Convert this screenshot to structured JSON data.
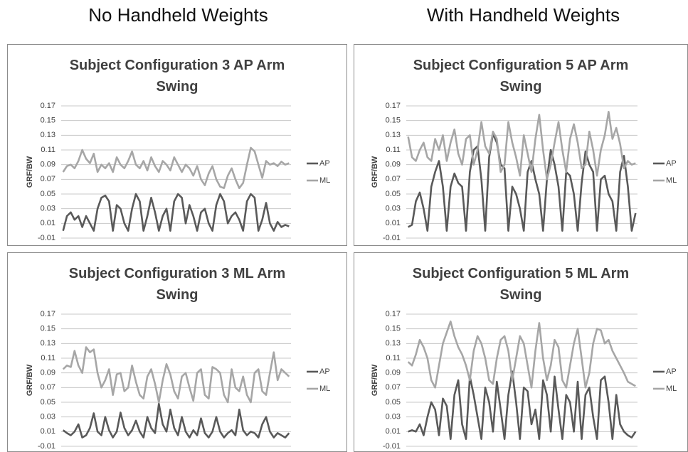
{
  "headers": [
    "No Handheld Weights",
    "With Handheld Weights"
  ],
  "chart_data": [
    {
      "type": "line",
      "title": "Subject Configuration 3 AP Arm Swing",
      "ylabel": "GRF/BW",
      "ylim": [
        -0.01,
        0.17
      ],
      "yticks": [
        -0.01,
        0.01,
        0.03,
        0.05,
        0.07,
        0.09,
        0.11,
        0.13,
        0.15,
        0.17
      ],
      "grid": true,
      "series": [
        {
          "name": "AP",
          "color": "#595959",
          "values": [
            0.0,
            0.02,
            0.025,
            0.015,
            0.02,
            0.005,
            0.02,
            0.01,
            0.0,
            0.03,
            0.045,
            0.048,
            0.04,
            0.0,
            0.035,
            0.03,
            0.01,
            0.0,
            0.03,
            0.05,
            0.04,
            0.0,
            0.02,
            0.045,
            0.025,
            0.0,
            0.02,
            0.03,
            0.0,
            0.04,
            0.05,
            0.045,
            0.01,
            0.035,
            0.02,
            0.0,
            0.025,
            0.03,
            0.01,
            0.0,
            0.035,
            0.05,
            0.04,
            0.01,
            0.02,
            0.025,
            0.015,
            0.0,
            0.04,
            0.05,
            0.045,
            0.0,
            0.015,
            0.038,
            0.01,
            0.0,
            0.012,
            0.005,
            0.008,
            0.006
          ]
        },
        {
          "name": "ML",
          "color": "#a6a6a6",
          "values": [
            0.08,
            0.088,
            0.09,
            0.085,
            0.095,
            0.11,
            0.098,
            0.092,
            0.105,
            0.08,
            0.09,
            0.085,
            0.092,
            0.08,
            0.1,
            0.09,
            0.085,
            0.095,
            0.108,
            0.09,
            0.085,
            0.095,
            0.082,
            0.1,
            0.088,
            0.08,
            0.095,
            0.09,
            0.082,
            0.1,
            0.09,
            0.08,
            0.09,
            0.085,
            0.075,
            0.088,
            0.07,
            0.062,
            0.078,
            0.088,
            0.07,
            0.06,
            0.058,
            0.075,
            0.085,
            0.07,
            0.058,
            0.065,
            0.09,
            0.113,
            0.108,
            0.09,
            0.072,
            0.095,
            0.09,
            0.092,
            0.088,
            0.094,
            0.09,
            0.092
          ]
        }
      ]
    },
    {
      "type": "line",
      "title": "Subject Configuration 5 AP Arm Swing",
      "ylabel": "GRF/BW",
      "ylim": [
        -0.01,
        0.17
      ],
      "yticks": [
        -0.01,
        0.01,
        0.03,
        0.05,
        0.07,
        0.09,
        0.11,
        0.13,
        0.15,
        0.17
      ],
      "grid": true,
      "series": [
        {
          "name": "AP",
          "color": "#595959",
          "values": [
            0.005,
            0.008,
            0.04,
            0.052,
            0.03,
            0.0,
            0.06,
            0.08,
            0.095,
            0.06,
            0.0,
            0.06,
            0.078,
            0.065,
            0.06,
            0.0,
            0.08,
            0.11,
            0.115,
            0.07,
            0.0,
            0.1,
            0.132,
            0.12,
            0.09,
            0.085,
            0.0,
            0.06,
            0.05,
            0.03,
            0.0,
            0.08,
            0.095,
            0.07,
            0.05,
            0.0,
            0.07,
            0.11,
            0.09,
            0.06,
            0.0,
            0.08,
            0.075,
            0.05,
            0.0,
            0.065,
            0.108,
            0.09,
            0.08,
            0.0,
            0.07,
            0.075,
            0.05,
            0.04,
            0.0,
            0.08,
            0.102,
            0.06,
            0.0,
            0.024
          ]
        },
        {
          "name": "ML",
          "color": "#a6a6a6",
          "values": [
            0.128,
            0.1,
            0.095,
            0.11,
            0.12,
            0.1,
            0.095,
            0.125,
            0.11,
            0.13,
            0.095,
            0.12,
            0.138,
            0.105,
            0.09,
            0.125,
            0.13,
            0.09,
            0.11,
            0.148,
            0.115,
            0.105,
            0.135,
            0.125,
            0.08,
            0.09,
            0.148,
            0.12,
            0.1,
            0.075,
            0.13,
            0.105,
            0.08,
            0.125,
            0.158,
            0.11,
            0.07,
            0.09,
            0.12,
            0.148,
            0.11,
            0.08,
            0.125,
            0.145,
            0.12,
            0.085,
            0.09,
            0.135,
            0.11,
            0.075,
            0.11,
            0.13,
            0.162,
            0.125,
            0.14,
            0.118,
            0.085,
            0.095,
            0.09,
            0.092
          ]
        }
      ]
    },
    {
      "type": "line",
      "title": "Subject Configuration 3 ML Arm Swing",
      "ylabel": "GRF/BW",
      "ylim": [
        -0.01,
        0.17
      ],
      "yticks": [
        -0.01,
        0.01,
        0.03,
        0.05,
        0.07,
        0.09,
        0.11,
        0.13,
        0.15,
        0.17
      ],
      "grid": true,
      "series": [
        {
          "name": "AP",
          "color": "#595959",
          "values": [
            0.012,
            0.008,
            0.005,
            0.01,
            0.02,
            0.002,
            0.005,
            0.015,
            0.035,
            0.01,
            0.005,
            0.03,
            0.012,
            0.002,
            0.01,
            0.036,
            0.015,
            0.005,
            0.012,
            0.025,
            0.01,
            0.002,
            0.03,
            0.015,
            0.008,
            0.048,
            0.02,
            0.01,
            0.04,
            0.015,
            0.005,
            0.03,
            0.01,
            0.002,
            0.012,
            0.005,
            0.028,
            0.008,
            0.002,
            0.01,
            0.03,
            0.01,
            0.002,
            0.008,
            0.012,
            0.005,
            0.04,
            0.012,
            0.005,
            0.01,
            0.008,
            0.002,
            0.02,
            0.03,
            0.01,
            0.002,
            0.008,
            0.005,
            0.002,
            0.008
          ]
        },
        {
          "name": "ML",
          "color": "#a6a6a6",
          "values": [
            0.095,
            0.1,
            0.098,
            0.12,
            0.1,
            0.09,
            0.125,
            0.118,
            0.122,
            0.09,
            0.07,
            0.08,
            0.095,
            0.06,
            0.088,
            0.09,
            0.065,
            0.07,
            0.1,
            0.078,
            0.06,
            0.055,
            0.085,
            0.095,
            0.075,
            0.05,
            0.08,
            0.102,
            0.088,
            0.065,
            0.055,
            0.085,
            0.09,
            0.07,
            0.052,
            0.09,
            0.095,
            0.06,
            0.055,
            0.098,
            0.095,
            0.09,
            0.06,
            0.05,
            0.095,
            0.07,
            0.065,
            0.085,
            0.06,
            0.05,
            0.09,
            0.095,
            0.065,
            0.06,
            0.09,
            0.118,
            0.08,
            0.095,
            0.09,
            0.085
          ]
        }
      ]
    },
    {
      "type": "line",
      "title": "Subject Configuration 5 ML Arm Swing",
      "ylabel": "GRF/BW",
      "ylim": [
        -0.01,
        0.17
      ],
      "yticks": [
        -0.01,
        0.01,
        0.03,
        0.05,
        0.07,
        0.09,
        0.11,
        0.13,
        0.15,
        0.17
      ],
      "grid": true,
      "series": [
        {
          "name": "AP",
          "color": "#595959",
          "values": [
            0.01,
            0.012,
            0.01,
            0.02,
            0.005,
            0.03,
            0.05,
            0.04,
            0.005,
            0.055,
            0.045,
            0.0,
            0.06,
            0.08,
            0.02,
            0.0,
            0.085,
            0.06,
            0.03,
            0.0,
            0.07,
            0.05,
            0.01,
            0.078,
            0.04,
            0.0,
            0.06,
            0.092,
            0.05,
            0.0,
            0.07,
            0.065,
            0.02,
            0.04,
            0.0,
            0.08,
            0.06,
            0.01,
            0.085,
            0.04,
            0.0,
            0.06,
            0.05,
            0.01,
            0.078,
            0.0,
            0.06,
            0.07,
            0.03,
            0.0,
            0.08,
            0.085,
            0.05,
            0.0,
            0.06,
            0.02,
            0.01,
            0.005,
            0.002,
            0.01
          ]
        },
        {
          "name": "ML",
          "color": "#a6a6a6",
          "values": [
            0.105,
            0.1,
            0.115,
            0.135,
            0.125,
            0.11,
            0.08,
            0.07,
            0.1,
            0.13,
            0.145,
            0.16,
            0.14,
            0.125,
            0.115,
            0.1,
            0.08,
            0.12,
            0.14,
            0.13,
            0.11,
            0.08,
            0.075,
            0.11,
            0.135,
            0.14,
            0.12,
            0.08,
            0.11,
            0.14,
            0.13,
            0.1,
            0.07,
            0.12,
            0.158,
            0.11,
            0.08,
            0.1,
            0.135,
            0.125,
            0.08,
            0.07,
            0.1,
            0.13,
            0.15,
            0.11,
            0.07,
            0.09,
            0.13,
            0.15,
            0.148,
            0.13,
            0.135,
            0.12,
            0.11,
            0.1,
            0.09,
            0.078,
            0.075,
            0.072
          ]
        }
      ]
    }
  ]
}
